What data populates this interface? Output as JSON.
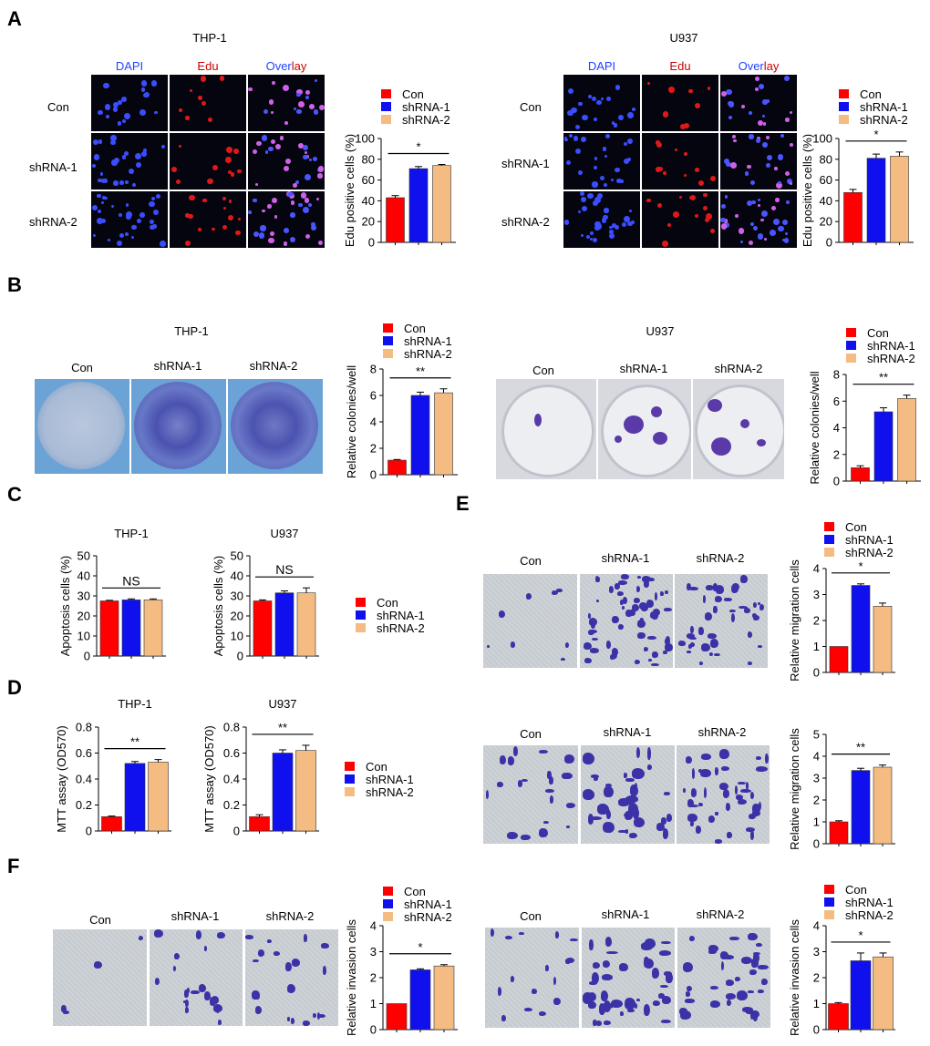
{
  "colors": {
    "con": "#ff0000",
    "sh1": "#1010ee",
    "sh2": "#f4bc82",
    "dapi": "#2244ff",
    "edu": "#cc0000"
  },
  "panel_letters": {
    "a": "A",
    "b": "B",
    "c": "C",
    "d": "D",
    "e": "E",
    "f": "F"
  },
  "panelA": {
    "left_title": "THP-1",
    "right_title": "U937",
    "channels": {
      "dapi": "DAPI",
      "edu": "Edu",
      "overlay_a": "Over",
      "overlay_b": "lay"
    },
    "rows": [
      "Con",
      "shRNA-1",
      "shRNA-2"
    ]
  },
  "panelB": {
    "left_title": "THP-1",
    "right_title": "U937",
    "cols": [
      "Con",
      "shRNA-1",
      "shRNA-2"
    ]
  },
  "panelC": {
    "left_title": "THP-1",
    "right_title": "U937"
  },
  "panelD": {
    "left_title": "THP-1",
    "right_title": "U937"
  },
  "panelE": {
    "cols": [
      "Con",
      "shRNA-1",
      "shRNA-2"
    ]
  },
  "panelF": {
    "cols": [
      "Con",
      "shRNA-1",
      "shRNA-2"
    ]
  },
  "legend": [
    "Con",
    "shRNA-1",
    "shRNA-2"
  ],
  "chart_data": [
    {
      "id": "A-THP1",
      "type": "bar",
      "title": "",
      "ylabel": "Edu positive cells (%)",
      "ylim": [
        0,
        100
      ],
      "yticks": [
        0,
        20,
        40,
        60,
        80,
        100
      ],
      "categories": [
        "Con",
        "shRNA-1",
        "shRNA-2"
      ],
      "values": [
        43,
        71,
        74
      ],
      "errors": [
        2,
        2,
        1
      ],
      "significance": "*"
    },
    {
      "id": "A-U937",
      "type": "bar",
      "title": "",
      "ylabel": "Edu positive cells (%)",
      "ylim": [
        0,
        100
      ],
      "yticks": [
        0,
        20,
        40,
        60,
        80,
        100
      ],
      "categories": [
        "Con",
        "shRNA-1",
        "shRNA-2"
      ],
      "values": [
        48,
        81,
        83
      ],
      "errors": [
        3,
        4,
        4
      ],
      "significance": "*"
    },
    {
      "id": "B-THP1",
      "type": "bar",
      "title": "",
      "ylabel": "Relative colonies/well",
      "ylim": [
        0,
        8
      ],
      "yticks": [
        0,
        2,
        4,
        6,
        8
      ],
      "categories": [
        "Con",
        "shRNA-1",
        "shRNA-2"
      ],
      "values": [
        1.1,
        6.0,
        6.2
      ],
      "errors": [
        0.05,
        0.25,
        0.3
      ],
      "significance": "**"
    },
    {
      "id": "B-U937",
      "type": "bar",
      "title": "",
      "ylabel": "Relative colonies/well",
      "ylim": [
        0,
        8
      ],
      "yticks": [
        0,
        2,
        4,
        6,
        8
      ],
      "categories": [
        "Con",
        "shRNA-1",
        "shRNA-2"
      ],
      "values": [
        1.0,
        5.2,
        6.2
      ],
      "errors": [
        0.15,
        0.3,
        0.25
      ],
      "significance": "**"
    },
    {
      "id": "C-THP1",
      "type": "bar",
      "title": "THP-1",
      "ylabel": "Apoptosis cells (%)",
      "ylim": [
        0,
        50
      ],
      "yticks": [
        0,
        10,
        20,
        30,
        40,
        50
      ],
      "categories": [
        "Con",
        "shRNA-1",
        "shRNA-2"
      ],
      "values": [
        27.5,
        28,
        28
      ],
      "errors": [
        0.3,
        0.5,
        0.5
      ],
      "significance": "NS"
    },
    {
      "id": "C-U937",
      "type": "bar",
      "title": "U937",
      "ylabel": "Apoptosis cells (%)",
      "ylim": [
        0,
        50
      ],
      "yticks": [
        0,
        10,
        20,
        30,
        40,
        50
      ],
      "categories": [
        "Con",
        "shRNA-1",
        "shRNA-2"
      ],
      "values": [
        27.5,
        31.5,
        31.5
      ],
      "errors": [
        0.5,
        1,
        2.5
      ],
      "significance": "NS"
    },
    {
      "id": "D-THP1",
      "type": "bar",
      "title": "THP-1",
      "ylabel": "MTT assay (OD570)",
      "ylim": [
        0,
        0.8
      ],
      "yticks": [
        0,
        0.2,
        0.4,
        0.6,
        0.8
      ],
      "categories": [
        "Con",
        "shRNA-1",
        "shRNA-2"
      ],
      "values": [
        0.11,
        0.52,
        0.53
      ],
      "errors": [
        0.005,
        0.015,
        0.02
      ],
      "significance": "**"
    },
    {
      "id": "D-U937",
      "type": "bar",
      "title": "U937",
      "ylabel": "MTT assay (OD570)",
      "ylim": [
        0,
        0.8
      ],
      "yticks": [
        0,
        0.2,
        0.4,
        0.6,
        0.8
      ],
      "categories": [
        "Con",
        "shRNA-1",
        "shRNA-2"
      ],
      "values": [
        0.11,
        0.6,
        0.62
      ],
      "errors": [
        0.015,
        0.025,
        0.04
      ],
      "significance": "**"
    },
    {
      "id": "E-top",
      "type": "bar",
      "title": "",
      "ylabel": "Relative migration cells",
      "ylim": [
        0,
        4
      ],
      "yticks": [
        0,
        1,
        2,
        3,
        4
      ],
      "categories": [
        "Con",
        "shRNA-1",
        "shRNA-2"
      ],
      "values": [
        1.0,
        3.35,
        2.55
      ],
      "errors": [
        0.0,
        0.06,
        0.12
      ],
      "significance": "*"
    },
    {
      "id": "E-bottom",
      "type": "bar",
      "title": "",
      "ylabel": "Relative migration cells",
      "ylim": [
        0,
        5
      ],
      "yticks": [
        0,
        1,
        2,
        3,
        4,
        5
      ],
      "categories": [
        "Con",
        "shRNA-1",
        "shRNA-2"
      ],
      "values": [
        1.0,
        3.35,
        3.5
      ],
      "errors": [
        0.05,
        0.1,
        0.1
      ],
      "significance": "**"
    },
    {
      "id": "F-left",
      "type": "bar",
      "title": "",
      "ylabel": "Relative invasion cells",
      "ylim": [
        0,
        4
      ],
      "yticks": [
        0,
        1,
        2,
        3,
        4
      ],
      "categories": [
        "Con",
        "shRNA-1",
        "shRNA-2"
      ],
      "values": [
        1.0,
        2.3,
        2.45
      ],
      "errors": [
        0.0,
        0.04,
        0.05
      ],
      "significance": "*"
    },
    {
      "id": "F-right",
      "type": "bar",
      "title": "",
      "ylabel": "Relative invasion cells",
      "ylim": [
        0,
        4
      ],
      "yticks": [
        0,
        1,
        2,
        3,
        4
      ],
      "categories": [
        "Con",
        "shRNA-1",
        "shRNA-2"
      ],
      "values": [
        1.0,
        2.65,
        2.8
      ],
      "errors": [
        0.04,
        0.3,
        0.15
      ],
      "significance": "*"
    }
  ]
}
